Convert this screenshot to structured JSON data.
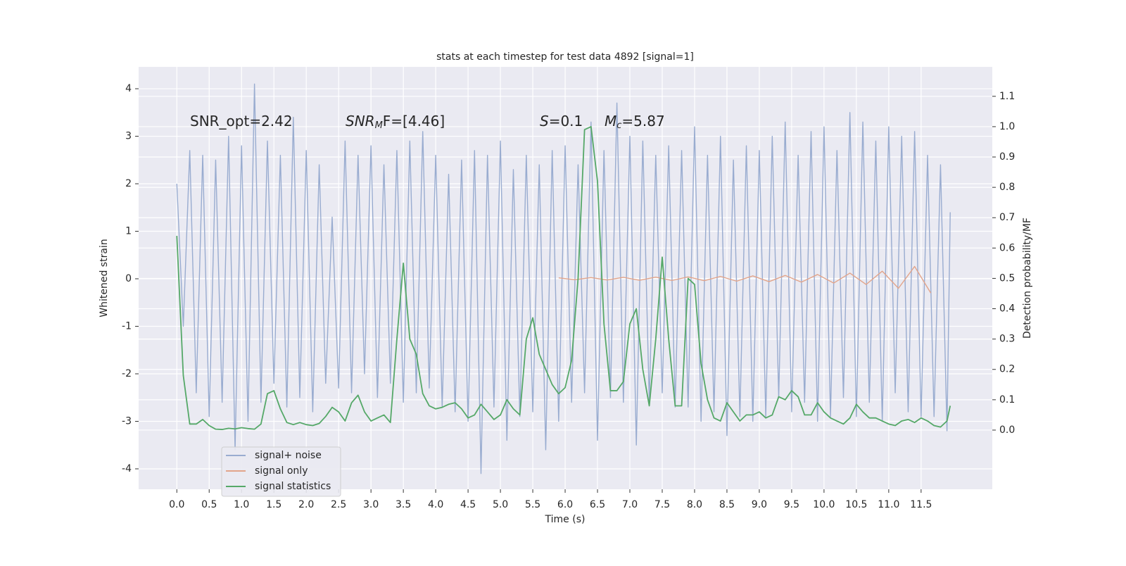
{
  "chart_data": {
    "type": "line",
    "title": "stats at each timestep for test data 4892 [signal=1]",
    "xlabel": "Time (s)",
    "ylabel": "Whitened strain",
    "y2label": "Detection probability/MF",
    "xlim": [
      -0.59,
      12.6
    ],
    "ylim": [
      -4.43,
      4.46
    ],
    "y2lim": [
      -0.195,
      1.197
    ],
    "xticks": [
      {
        "value": 0,
        "label": "0.0"
      },
      {
        "value": 0.5,
        "label": "0.5"
      },
      {
        "value": 1,
        "label": "1.0"
      },
      {
        "value": 1.5,
        "label": "1.5"
      },
      {
        "value": 2,
        "label": "2.0"
      },
      {
        "value": 2.5,
        "label": "2.5"
      },
      {
        "value": 3,
        "label": "3.0"
      },
      {
        "value": 3.5,
        "label": "3.5"
      },
      {
        "value": 4,
        "label": "4.0"
      },
      {
        "value": 4.5,
        "label": "4.5"
      },
      {
        "value": 5,
        "label": "5.0"
      },
      {
        "value": 5.5,
        "label": "5.5"
      },
      {
        "value": 6,
        "label": "6.0"
      },
      {
        "value": 6.5,
        "label": "6.5"
      },
      {
        "value": 7,
        "label": "7.0"
      },
      {
        "value": 7.5,
        "label": "7.5"
      },
      {
        "value": 8,
        "label": "8.0"
      },
      {
        "value": 8.5,
        "label": "8.5"
      },
      {
        "value": 9,
        "label": "9.0"
      },
      {
        "value": 9.5,
        "label": "9.5"
      },
      {
        "value": 10,
        "label": "10.0"
      },
      {
        "value": 10.5,
        "label": "10.5"
      },
      {
        "value": 11,
        "label": "11.0"
      },
      {
        "value": 11.5,
        "label": "11.5"
      }
    ],
    "yticks": [
      -4,
      -3,
      -2,
      -1,
      0,
      1,
      2,
      3,
      4
    ],
    "y2ticks": [
      {
        "value": 0,
        "label": "0.0"
      },
      {
        "value": 0.1,
        "label": "0.1"
      },
      {
        "value": 0.2,
        "label": "0.2"
      },
      {
        "value": 0.3,
        "label": "0.3"
      },
      {
        "value": 0.4,
        "label": "0.4"
      },
      {
        "value": 0.5,
        "label": "0.5"
      },
      {
        "value": 0.6,
        "label": "0.6"
      },
      {
        "value": 0.7,
        "label": "0.7"
      },
      {
        "value": 0.8,
        "label": "0.8"
      },
      {
        "value": 0.9,
        "label": "0.9"
      },
      {
        "value": 1,
        "label": "1.0"
      },
      {
        "value": 1.1,
        "label": "1.1"
      }
    ],
    "grid": true,
    "legend": "lower left",
    "annotations": [
      [
        {
          "text": "SNR_opt=2.42"
        }
      ],
      [
        {
          "text": "SNR",
          "italic": true
        },
        {
          "text": "M",
          "italic": true,
          "sub": true
        },
        {
          "text": "F=[4.46]"
        }
      ],
      [
        {
          "text": "S",
          "italic": true
        },
        {
          "text": "=0.1"
        }
      ],
      [
        {
          "text": "M",
          "italic": true
        },
        {
          "text": "c",
          "italic": true,
          "sub": true
        },
        {
          "text": "=5.87"
        }
      ]
    ],
    "x": [
      0,
      0.1,
      0.2,
      0.3,
      0.4,
      0.5,
      0.6,
      0.7,
      0.8,
      0.9,
      1,
      1.1,
      1.2,
      1.3,
      1.4,
      1.5,
      1.6,
      1.7,
      1.8,
      1.9,
      2,
      2.1,
      2.2,
      2.3,
      2.4,
      2.5,
      2.6,
      2.7,
      2.8,
      2.9,
      3,
      3.1,
      3.2,
      3.3,
      3.4,
      3.5,
      3.6,
      3.7,
      3.8,
      3.9,
      4,
      4.1,
      4.2,
      4.3,
      4.4,
      4.5,
      4.6,
      4.7,
      4.8,
      4.9,
      5,
      5.1,
      5.2,
      5.3,
      5.4,
      5.5,
      5.6,
      5.7,
      5.8,
      5.9,
      6,
      6.1,
      6.2,
      6.3,
      6.4,
      6.5,
      6.6,
      6.7,
      6.8,
      6.9,
      7,
      7.1,
      7.2,
      7.3,
      7.4,
      7.5,
      7.6,
      7.7,
      7.8,
      7.9,
      8,
      8.1,
      8.2,
      8.3,
      8.4,
      8.5,
      8.6,
      8.7,
      8.8,
      8.9,
      9,
      9.1,
      9.2,
      9.3,
      9.4,
      9.5,
      9.6,
      9.7,
      9.8,
      9.9,
      10,
      10.1,
      10.2,
      10.3,
      10.4,
      10.5,
      10.6,
      10.7,
      10.8,
      10.9,
      11,
      11.1,
      11.2,
      11.3,
      11.4,
      11.5,
      11.6,
      11.7,
      11.8,
      11.9,
      11.95
    ],
    "series": [
      {
        "name": "signal+ noise",
        "color": "#99acd0",
        "values": [
          2.0,
          -1.0,
          2.7,
          -2.4,
          2.6,
          -2.9,
          2.5,
          -2.6,
          3.0,
          -3.6,
          2.8,
          -3.0,
          4.1,
          -2.6,
          2.9,
          -2.2,
          2.6,
          -2.7,
          3.4,
          -2.5,
          2.7,
          -2.8,
          2.4,
          -2.2,
          1.3,
          -2.3,
          2.9,
          -2.4,
          2.6,
          -2.0,
          2.8,
          -2.5,
          2.4,
          -2.2,
          2.7,
          -2.6,
          2.9,
          -2.4,
          3.1,
          -2.3,
          2.6,
          -2.7,
          2.2,
          -2.8,
          2.5,
          -3.0,
          2.7,
          -4.1,
          2.6,
          -2.7,
          2.9,
          -3.4,
          2.3,
          -2.9,
          2.6,
          -2.8,
          2.4,
          -3.6,
          2.7,
          -3.0,
          2.8,
          -2.6,
          2.4,
          -2.4,
          3.3,
          -3.4,
          2.7,
          -2.5,
          3.7,
          -2.6,
          3.0,
          -3.5,
          2.9,
          -2.6,
          2.6,
          -2.4,
          2.8,
          -2.7,
          2.7,
          -2.7,
          3.2,
          -3.0,
          2.6,
          -2.8,
          3.0,
          -3.3,
          2.5,
          -2.9,
          2.8,
          -3.0,
          2.7,
          -2.9,
          3.0,
          -2.5,
          3.3,
          -2.8,
          2.6,
          -2.6,
          3.1,
          -3.0,
          3.2,
          -2.9,
          2.7,
          -2.5,
          3.5,
          -2.9,
          3.3,
          -2.6,
          2.9,
          -3.0,
          3.2,
          -2.4,
          3.0,
          -2.8,
          3.1,
          -2.9,
          2.6,
          -2.9,
          2.4,
          -3.2,
          1.4
        ]
      },
      {
        "name": "signal only",
        "color": "#e2a48a",
        "x": [
          5.9,
          6.15,
          6.4,
          6.65,
          6.9,
          7.15,
          7.4,
          7.65,
          7.9,
          8.15,
          8.4,
          8.65,
          8.9,
          9.15,
          9.4,
          9.65,
          9.9,
          10.15,
          10.4,
          10.65,
          10.9,
          11.15,
          11.4,
          11.65
        ],
        "values": [
          0.02,
          -0.02,
          0.025,
          -0.025,
          0.03,
          -0.03,
          0.035,
          -0.035,
          0.04,
          -0.04,
          0.05,
          -0.05,
          0.06,
          -0.06,
          0.07,
          -0.07,
          0.09,
          -0.09,
          0.12,
          -0.12,
          0.16,
          -0.2,
          0.26,
          -0.3
        ]
      },
      {
        "name": "signal statistics",
        "color": "#55a868",
        "axis": "y2",
        "values": [
          0.64,
          0.18,
          0.02,
          0.02,
          0.035,
          0.015,
          0.003,
          0.002,
          0.006,
          0.004,
          0.008,
          0.005,
          0.003,
          0.02,
          0.12,
          0.13,
          0.07,
          0.025,
          0.018,
          0.025,
          0.018,
          0.015,
          0.022,
          0.045,
          0.075,
          0.06,
          0.03,
          0.09,
          0.115,
          0.06,
          0.03,
          0.04,
          0.05,
          0.025,
          0.3,
          0.55,
          0.3,
          0.25,
          0.12,
          0.08,
          0.07,
          0.075,
          0.085,
          0.09,
          0.07,
          0.04,
          0.05,
          0.085,
          0.06,
          0.035,
          0.05,
          0.1,
          0.07,
          0.05,
          0.3,
          0.37,
          0.25,
          0.2,
          0.15,
          0.12,
          0.14,
          0.23,
          0.5,
          0.99,
          1.0,
          0.82,
          0.35,
          0.13,
          0.13,
          0.16,
          0.35,
          0.4,
          0.2,
          0.08,
          0.3,
          0.57,
          0.3,
          0.08,
          0.08,
          0.5,
          0.48,
          0.22,
          0.1,
          0.04,
          0.03,
          0.09,
          0.06,
          0.03,
          0.05,
          0.05,
          0.06,
          0.04,
          0.05,
          0.11,
          0.1,
          0.13,
          0.11,
          0.05,
          0.05,
          0.09,
          0.06,
          0.04,
          0.03,
          0.02,
          0.04,
          0.085,
          0.06,
          0.04,
          0.04,
          0.03,
          0.02,
          0.015,
          0.03,
          0.035,
          0.025,
          0.04,
          0.03,
          0.015,
          0.01,
          0.03,
          0.08
        ]
      }
    ]
  }
}
